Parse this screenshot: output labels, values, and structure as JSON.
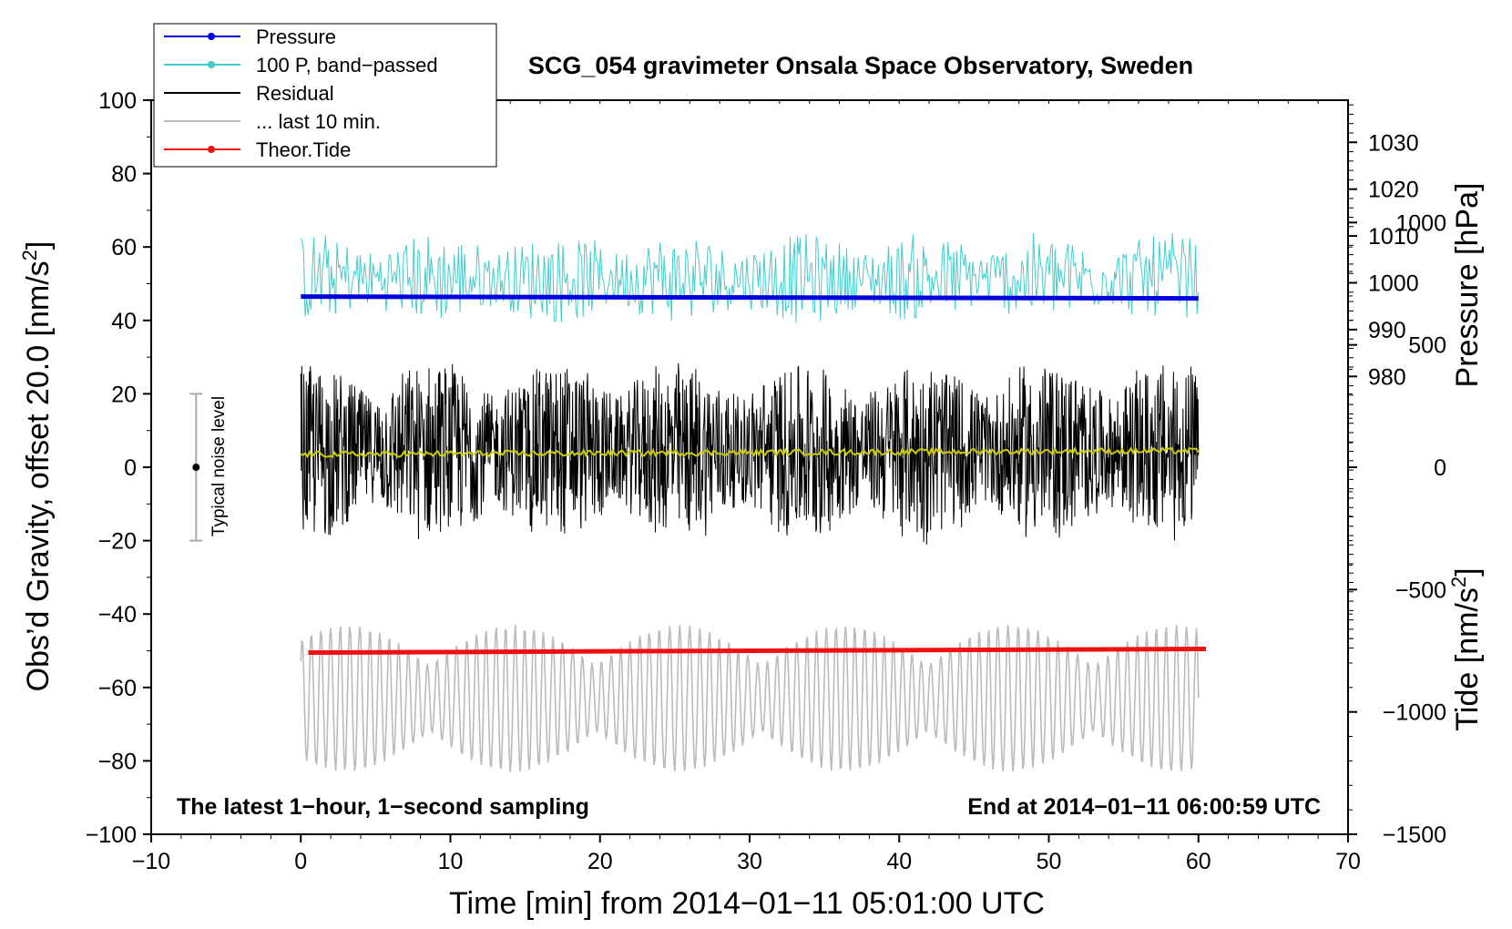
{
  "chart_data": {
    "type": "line",
    "title": "SCG_054 gravimeter Onsala Space Observatory, Sweden",
    "xlabel": "Time [min] from 2014−01−11 05:01:00 UTC",
    "ylabel": "Obs’d Gravity, offset 20.0 [nm/s2]",
    "ylabel_main": "Obs’d Gravity, offset 20.0 [nm/s",
    "ylabel_sup": "2",
    "ylabel_end": "]",
    "y2label_pressure": "Pressure [hPa]",
    "y2label_tide": "Tide [nm/s2]",
    "y2label_tide_main": "Tide [nm/s",
    "y2label_tide_sup": "2",
    "y2label_tide_end": "]",
    "note_left": "The latest 1−hour, 1−second sampling",
    "note_right": "End at 2014−01−11 06:00:59 UTC",
    "noise_label": "Typical noise level",
    "xlim": [
      -10,
      70
    ],
    "ylim": [
      -100,
      100
    ],
    "xticks": [
      -10,
      0,
      10,
      20,
      30,
      40,
      50,
      60,
      70
    ],
    "xtick_labels": [
      "−10",
      "0",
      "10",
      "20",
      "30",
      "40",
      "50",
      "60",
      "70"
    ],
    "yticks": [
      -100,
      -80,
      -60,
      -40,
      -20,
      0,
      20,
      40,
      60,
      80,
      100
    ],
    "ytick_labels": [
      "−100",
      "−80",
      "−60",
      "−40",
      "−20",
      "0",
      "20",
      "40",
      "60",
      "80",
      "100"
    ],
    "pressure_axis": {
      "range_at_gravity": [
        -51.8,
        100
      ],
      "hpa_range": [
        920,
        1039
      ],
      "ticks": [
        980,
        990,
        1000,
        1010,
        1020,
        1030
      ],
      "tick_labels": [
        "980",
        "990",
        "1000",
        "1010",
        "1020",
        "1030"
      ]
    },
    "tide_axis": {
      "range_at_gravity": [
        -100,
        100
      ],
      "nms2_range": [
        -1500,
        1500
      ],
      "ticks": [
        -1500,
        -1000,
        -500,
        0,
        500,
        1000
      ],
      "tick_labels": [
        "−1500",
        "−1000",
        "−500",
        "0",
        "500",
        "1000"
      ]
    },
    "noise_bar": {
      "x": -7,
      "y_center": 0,
      "y_low": -20,
      "y_high": 20
    },
    "legend": [
      {
        "label": "Pressure",
        "color": "#0000dd",
        "marker": true
      },
      {
        "label": "100 P, band−passed",
        "color": "#44cccc",
        "marker": true
      },
      {
        "label": "Residual",
        "color": "#000000",
        "marker": false
      },
      {
        "label": "... last 10 min.",
        "color": "#bbbbbb",
        "marker": false
      },
      {
        "label": "Theor.Tide",
        "color": "#ee1111",
        "marker": true
      }
    ],
    "series": [
      {
        "name": "Pressure",
        "color": "#0000dd",
        "x_start": 0,
        "x_end": 60,
        "y_start": 46.5,
        "y_end": 46.0,
        "note": "approx. 1000 hPa, nearly constant"
      },
      {
        "name": "100 P, band−passed",
        "color": "#44cccc",
        "x_start": 0,
        "x_end": 60,
        "center": 51.5,
        "amplitude": 13,
        "min": 30,
        "max": 64
      },
      {
        "name": "Residual",
        "color": "#000000",
        "x_start": 0,
        "x_end": 60,
        "center": 4.5,
        "amplitude": 26,
        "min": -26,
        "max": 30
      },
      {
        "name": "Residual smoothed",
        "color": "#cccc00",
        "x_start": 0,
        "x_end": 60,
        "y_start": 3.5,
        "y_end": 4.5
      },
      {
        "name": "... last 10 min.",
        "color": "#bbbbbb",
        "x_start": 0,
        "x_end": 60,
        "center": -63,
        "amplitude": 20,
        "min": -83,
        "max": -43
      },
      {
        "name": "Theor.Tide",
        "color": "#ee1111",
        "x_start": 0.5,
        "x_end": 60.5,
        "y_start": -50.5,
        "y_end": -49.5
      }
    ]
  }
}
